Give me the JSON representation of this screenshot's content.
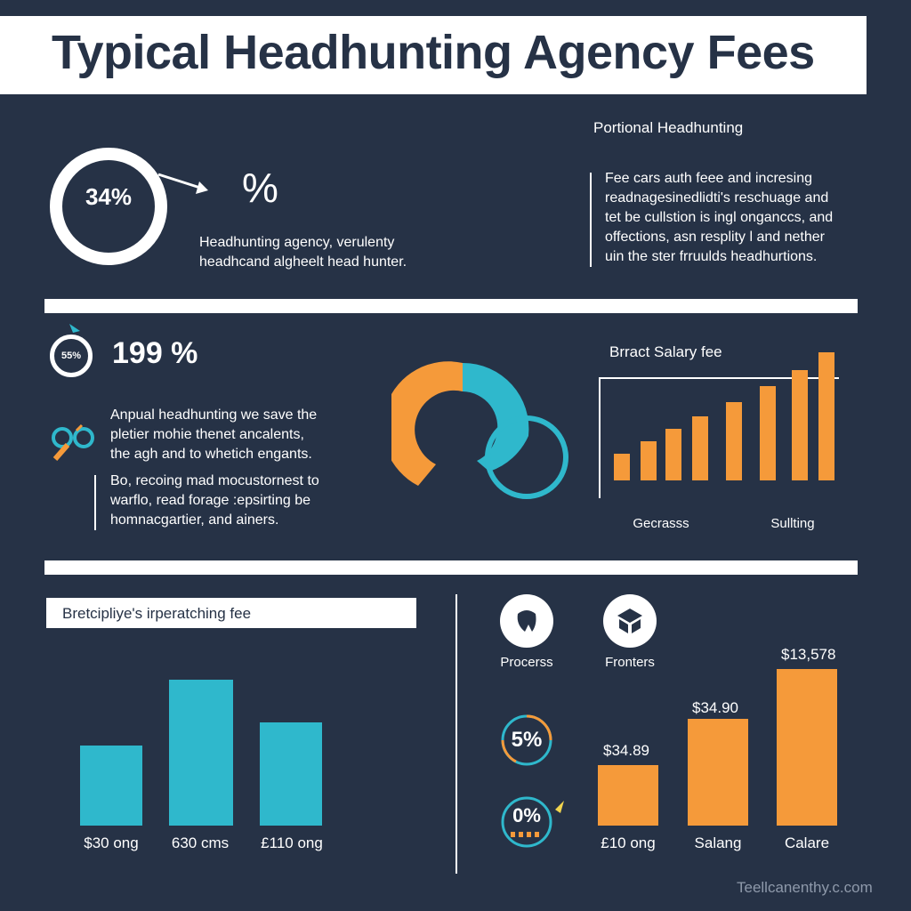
{
  "title": "Typical Headhunting Agency Fees",
  "top": {
    "ring_label": "34%",
    "big_percent": "%",
    "left_text": [
      "Headhunting agency, verulenty",
      "headhcand algheelt head hunter."
    ],
    "right_heading": "Portional Headhunting",
    "right_text": [
      "Fee cars auth feee and incresing",
      "readnagesinedlidti's reschuage and",
      "tet be cullstion is ingl onganccs, and",
      "offections, asn resplity l and nether",
      "uin the ster frruulds headhurtions."
    ]
  },
  "middle": {
    "small_ring_label": "55%",
    "percent": "199 %",
    "text_a": [
      "Anpual headhunting we save the",
      "pletier mohie thenet ancalents,",
      "the agh and to whetich engants."
    ],
    "text_b": [
      "Bo, recoing mad mocustornest to",
      "warflo, read forage :epsirting be",
      "homnacgartier, and ainers."
    ],
    "chart_heading": "Brract Salary fee",
    "chart_labels": [
      "Gecrasss",
      "Sullting"
    ]
  },
  "bottom": {
    "subheading": "Bretcipliye's irperatching fee",
    "left_bar_labels": [
      "$30 ong",
      "630 cms",
      "£110 ong"
    ],
    "icon_labels": [
      "Procerss",
      "Fronters"
    ],
    "ring_5_label": "5%",
    "ring_0_label": "0%",
    "right_bar_values": [
      "$34.89",
      "$34.90",
      "$13,578"
    ],
    "right_bar_labels": [
      "£10 ong",
      "Salang",
      "Calare"
    ]
  },
  "footer": "Teellcanenthy.c.com",
  "colors": {
    "background": "#263246",
    "orange": "#f59a3a",
    "teal": "#2fb8cc",
    "white": "#ffffff"
  }
}
